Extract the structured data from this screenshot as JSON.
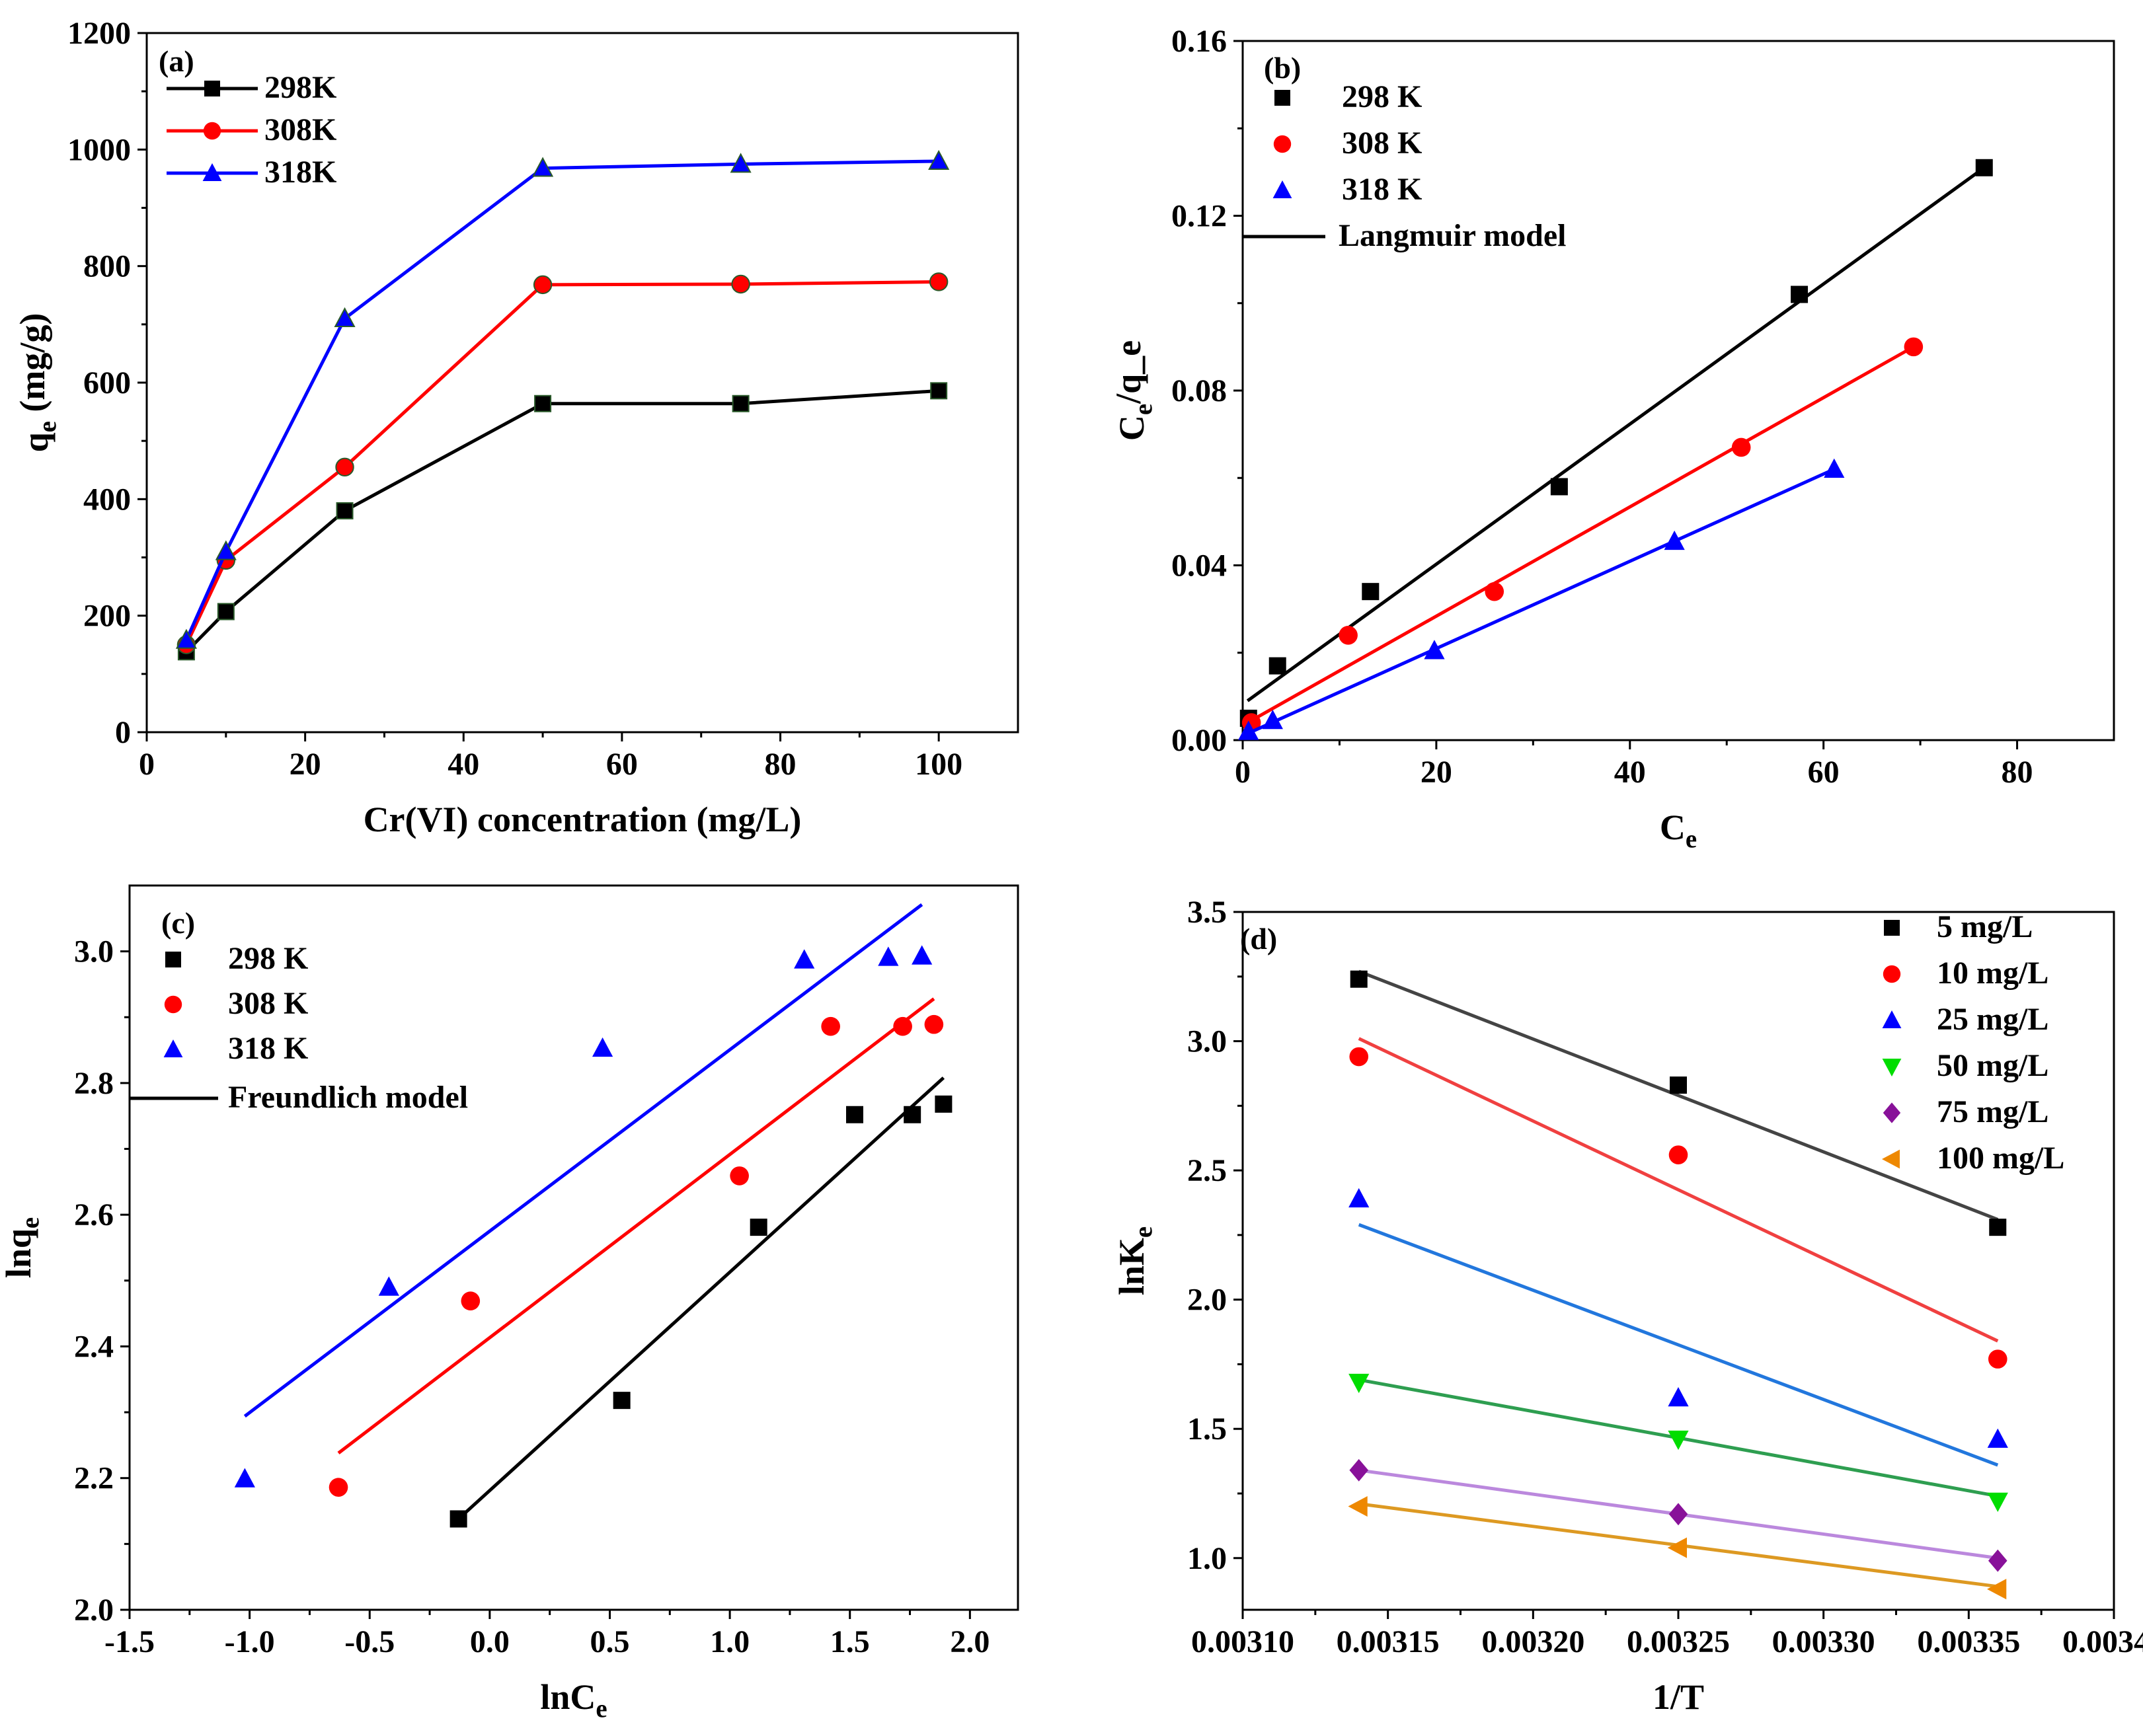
{
  "panels": [
    {
      "panel": "(a)",
      "chart_data": {
        "type": "line",
        "xlabel": "Cr(VI) concentration (mg/L)",
        "ylabel": "q_e (mg/g)",
        "xlim": [
          0,
          110
        ],
        "ylim": [
          0,
          1200
        ],
        "xticks": [
          0,
          20,
          40,
          60,
          80,
          100
        ],
        "yticks": [
          0,
          200,
          400,
          600,
          800,
          1000,
          1200
        ],
        "legend_position": "top-left",
        "series": [
          {
            "name": "298K",
            "color": "#000000",
            "marker": "square",
            "x": [
              5,
              10,
              25,
              50,
              75,
              100
            ],
            "y": [
              138,
              207,
              380,
              564,
              564,
              586
            ]
          },
          {
            "name": "308K",
            "color": "#ff0000",
            "marker": "circle",
            "x": [
              5,
              10,
              25,
              50,
              75,
              100
            ],
            "y": [
              150,
              295,
              455,
              768,
              769,
              773
            ]
          },
          {
            "name": "318K",
            "color": "#0000ff",
            "marker": "triangle",
            "x": [
              5,
              10,
              25,
              50,
              75,
              100
            ],
            "y": [
              158,
              310,
              710,
              968,
              975,
              980
            ]
          }
        ]
      }
    },
    {
      "panel": "(b)",
      "chart_data": {
        "type": "scatter",
        "xlabel": "C_e",
        "ylabel": "C_e/q_e",
        "xlim": [
          0,
          90
        ],
        "ylim": [
          0,
          0.16
        ],
        "xticks": [
          0,
          20,
          40,
          60,
          80
        ],
        "yticks": [
          0.0,
          0.04,
          0.08,
          0.12,
          0.16
        ],
        "legend_position": "top-left",
        "fit_name": "Langmuir model",
        "series": [
          {
            "name": "298 K",
            "color": "#000000",
            "marker": "square",
            "x": [
              0.6,
              3.6,
              13.2,
              32.7,
              57.5,
              76.6
            ],
            "y": [
              0.005,
              0.017,
              0.034,
              0.058,
              0.102,
              0.131
            ],
            "fit": [
              [
                0.5,
                0.009
              ],
              [
                76.6,
                0.131
              ]
            ]
          },
          {
            "name": "308 K",
            "color": "#ff0000",
            "marker": "circle",
            "x": [
              0.9,
              10.9,
              26.0,
              51.5,
              69.3
            ],
            "y": [
              0.004,
              0.024,
              0.034,
              0.067,
              0.09
            ],
            "fit": [
              [
                0.5,
                0.004
              ],
              [
                69.3,
                0.09
              ]
            ]
          },
          {
            "name": "318 K",
            "color": "#0000ff",
            "marker": "triangle",
            "x": [
              0.6,
              3.1,
              19.8,
              44.6,
              61.1
            ],
            "y": [
              0.002,
              0.0045,
              0.0205,
              0.0455,
              0.062
            ],
            "fit": [
              [
                0.5,
                0.0015
              ],
              [
                61.1,
                0.062
              ]
            ]
          }
        ]
      }
    },
    {
      "panel": "(c)",
      "chart_data": {
        "type": "scatter",
        "xlabel": "lnC_e",
        "ylabel": "lnq_e",
        "xlim": [
          -1.5,
          2.2
        ],
        "ylim": [
          2.0,
          3.1
        ],
        "xticks": [
          -1.5,
          -1.0,
          -0.5,
          0.0,
          0.5,
          1.0,
          1.5,
          2.0
        ],
        "yticks": [
          2.0,
          2.2,
          2.4,
          2.6,
          2.8,
          3.0
        ],
        "legend_position": "top-left",
        "fit_name": "Freundlich model",
        "series": [
          {
            "name": "298 K",
            "color": "#000000",
            "marker": "square",
            "x": [
              -0.13,
              0.55,
              1.12,
              1.52,
              1.76,
              1.89
            ],
            "y": [
              2.138,
              2.318,
              2.581,
              2.752,
              2.752,
              2.768
            ],
            "fit": [
              [
                -0.13,
                2.138
              ],
              [
                1.89,
                2.808
              ]
            ]
          },
          {
            "name": "308 K",
            "color": "#ff0000",
            "marker": "circle",
            "x": [
              -0.63,
              -0.08,
              1.04,
              1.42,
              1.72,
              1.85
            ],
            "y": [
              2.186,
              2.469,
              2.659,
              2.886,
              2.886,
              2.889
            ],
            "fit": [
              [
                -0.63,
                2.238
              ],
              [
                1.85,
                2.928
              ]
            ]
          },
          {
            "name": "318 K",
            "color": "#0000ff",
            "marker": "triangle",
            "x": [
              -1.02,
              -0.42,
              0.47,
              1.31,
              1.66,
              1.8
            ],
            "y": [
              2.199,
              2.49,
              2.853,
              2.987,
              2.991,
              2.993
            ],
            "fit": [
              [
                -1.02,
                2.294
              ],
              [
                1.8,
                3.071
              ]
            ]
          }
        ]
      }
    },
    {
      "panel": "(d)",
      "chart_data": {
        "type": "scatter",
        "xlabel": "1/T",
        "ylabel": "lnK_e",
        "xlim": [
          0.0031,
          0.0034
        ],
        "ylim": [
          0.8,
          3.5
        ],
        "xticks": [
          0.0031,
          0.00315,
          0.0032,
          0.00325,
          0.0033,
          0.00335,
          0.0034
        ],
        "xtick_labels": [
          "0.00310",
          "0.00315",
          "0.00320",
          "0.00325",
          "0.00330",
          "0.00335",
          "0.00340"
        ],
        "yticks": [
          1.0,
          1.5,
          2.0,
          2.5,
          3.0,
          3.5
        ],
        "legend_position": "top-right",
        "series": [
          {
            "name": "5 mg/L",
            "color": "#000000",
            "line_color": "#444444",
            "marker": "square",
            "x": [
              0.00314,
              0.00325,
              0.00336
            ],
            "y": [
              3.24,
              2.83,
              2.28
            ],
            "fit": [
              [
                0.00314,
                3.27
              ],
              [
                0.00336,
                2.31
              ]
            ]
          },
          {
            "name": "10 mg/L",
            "color": "#ff0000",
            "line_color": "#f04040",
            "marker": "circle",
            "x": [
              0.00314,
              0.00325,
              0.00336
            ],
            "y": [
              2.94,
              2.56,
              1.77
            ],
            "fit": [
              [
                0.00314,
                3.01
              ],
              [
                0.00336,
                1.84
              ]
            ]
          },
          {
            "name": "25 mg/L",
            "color": "#0000ff",
            "line_color": "#2277dd",
            "marker": "triangle",
            "x": [
              0.00314,
              0.00325,
              0.00336
            ],
            "y": [
              2.39,
              1.62,
              1.46
            ],
            "fit": [
              [
                0.00314,
                2.29
              ],
              [
                0.00336,
                1.36
              ]
            ]
          },
          {
            "name": "50 mg/L",
            "color": "#00dd00",
            "line_color": "#2e9e50",
            "marker": "triangle-down",
            "x": [
              0.00314,
              0.00325,
              0.00336
            ],
            "y": [
              1.68,
              1.46,
              1.22
            ],
            "fit": [
              [
                0.00314,
                1.69
              ],
              [
                0.00336,
                1.24
              ]
            ]
          },
          {
            "name": "75 mg/L",
            "color": "#881199",
            "line_color": "#bb88dd",
            "marker": "diamond",
            "x": [
              0.00314,
              0.00325,
              0.00336
            ],
            "y": [
              1.34,
              1.17,
              0.99
            ],
            "fit": [
              [
                0.00314,
                1.34
              ],
              [
                0.00336,
                1.0
              ]
            ]
          },
          {
            "name": "100 mg/L",
            "color": "#ee8800",
            "line_color": "#dd9922",
            "marker": "triangle-left",
            "x": [
              0.00314,
              0.00325,
              0.00336
            ],
            "y": [
              1.2,
              1.04,
              0.88
            ],
            "fit": [
              [
                0.00314,
                1.21
              ],
              [
                0.00336,
                0.89
              ]
            ]
          }
        ]
      }
    }
  ]
}
